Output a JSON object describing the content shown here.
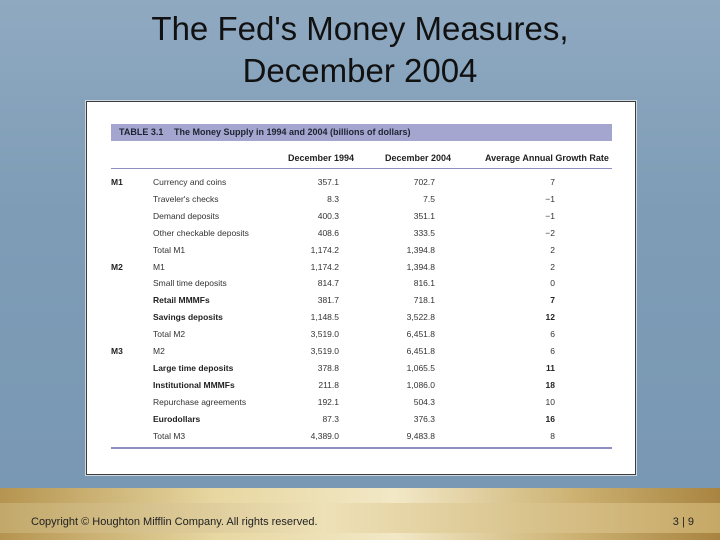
{
  "slide": {
    "title_line1": "The Fed's Money Measures,",
    "title_line2": "December 2004"
  },
  "table": {
    "number": "TABLE 3.1",
    "caption": "The Money Supply in 1994 and 2004 (billions of dollars)",
    "columns": [
      "December 1994",
      "December 2004",
      "Average Annual Growth Rate"
    ],
    "rows": [
      {
        "group": "M1",
        "label": "Currency and coins",
        "v1994": "357.1",
        "v2004": "702.7",
        "growth": "7",
        "strong": false
      },
      {
        "group": "",
        "label": "Traveler's checks",
        "v1994": "8.3",
        "v2004": "7.5",
        "growth": "−1",
        "strong": false
      },
      {
        "group": "",
        "label": "Demand deposits",
        "v1994": "400.3",
        "v2004": "351.1",
        "growth": "−1",
        "strong": false
      },
      {
        "group": "",
        "label": "Other checkable deposits",
        "v1994": "408.6",
        "v2004": "333.5",
        "growth": "−2",
        "strong": false
      },
      {
        "group": "",
        "label": "Total M1",
        "v1994": "1,174.2",
        "v2004": "1,394.8",
        "growth": "2",
        "strong": false
      },
      {
        "group": "M2",
        "label": "M1",
        "v1994": "1,174.2",
        "v2004": "1,394.8",
        "growth": "2",
        "strong": false
      },
      {
        "group": "",
        "label": "Small time deposits",
        "v1994": "814.7",
        "v2004": "816.1",
        "growth": "0",
        "strong": false
      },
      {
        "group": "",
        "label": "Retail MMMFs",
        "v1994": "381.7",
        "v2004": "718.1",
        "growth": "7",
        "strong": true
      },
      {
        "group": "",
        "label": "Savings deposits",
        "v1994": "1,148.5",
        "v2004": "3,522.8",
        "growth": "12",
        "strong": true
      },
      {
        "group": "",
        "label": "Total M2",
        "v1994": "3,519.0",
        "v2004": "6,451.8",
        "growth": "6",
        "strong": false
      },
      {
        "group": "M3",
        "label": "M2",
        "v1994": "3,519.0",
        "v2004": "6,451.8",
        "growth": "6",
        "strong": false
      },
      {
        "group": "",
        "label": "Large time deposits",
        "v1994": "378.8",
        "v2004": "1,065.5",
        "growth": "11",
        "strong": true
      },
      {
        "group": "",
        "label": "Institutional MMMFs",
        "v1994": "211.8",
        "v2004": "1,086.0",
        "growth": "18",
        "strong": true
      },
      {
        "group": "",
        "label": "Repurchase agreements",
        "v1994": "192.1",
        "v2004": "504.3",
        "growth": "10",
        "strong": false
      },
      {
        "group": "",
        "label": "Eurodollars",
        "v1994": "87.3",
        "v2004": "376.3",
        "growth": "16",
        "strong": true
      },
      {
        "group": "",
        "label": "Total M3",
        "v1994": "4,389.0",
        "v2004": "9,483.8",
        "growth": "8",
        "strong": false
      }
    ]
  },
  "footer": {
    "copyright": "Copyright © Houghton Mifflin Company.  All rights reserved.",
    "page": "3 | 9"
  },
  "colors": {
    "background": "#8fa9c1",
    "caption_bar": "#a5a6cf",
    "footer_gold": "#e7d7a1"
  }
}
